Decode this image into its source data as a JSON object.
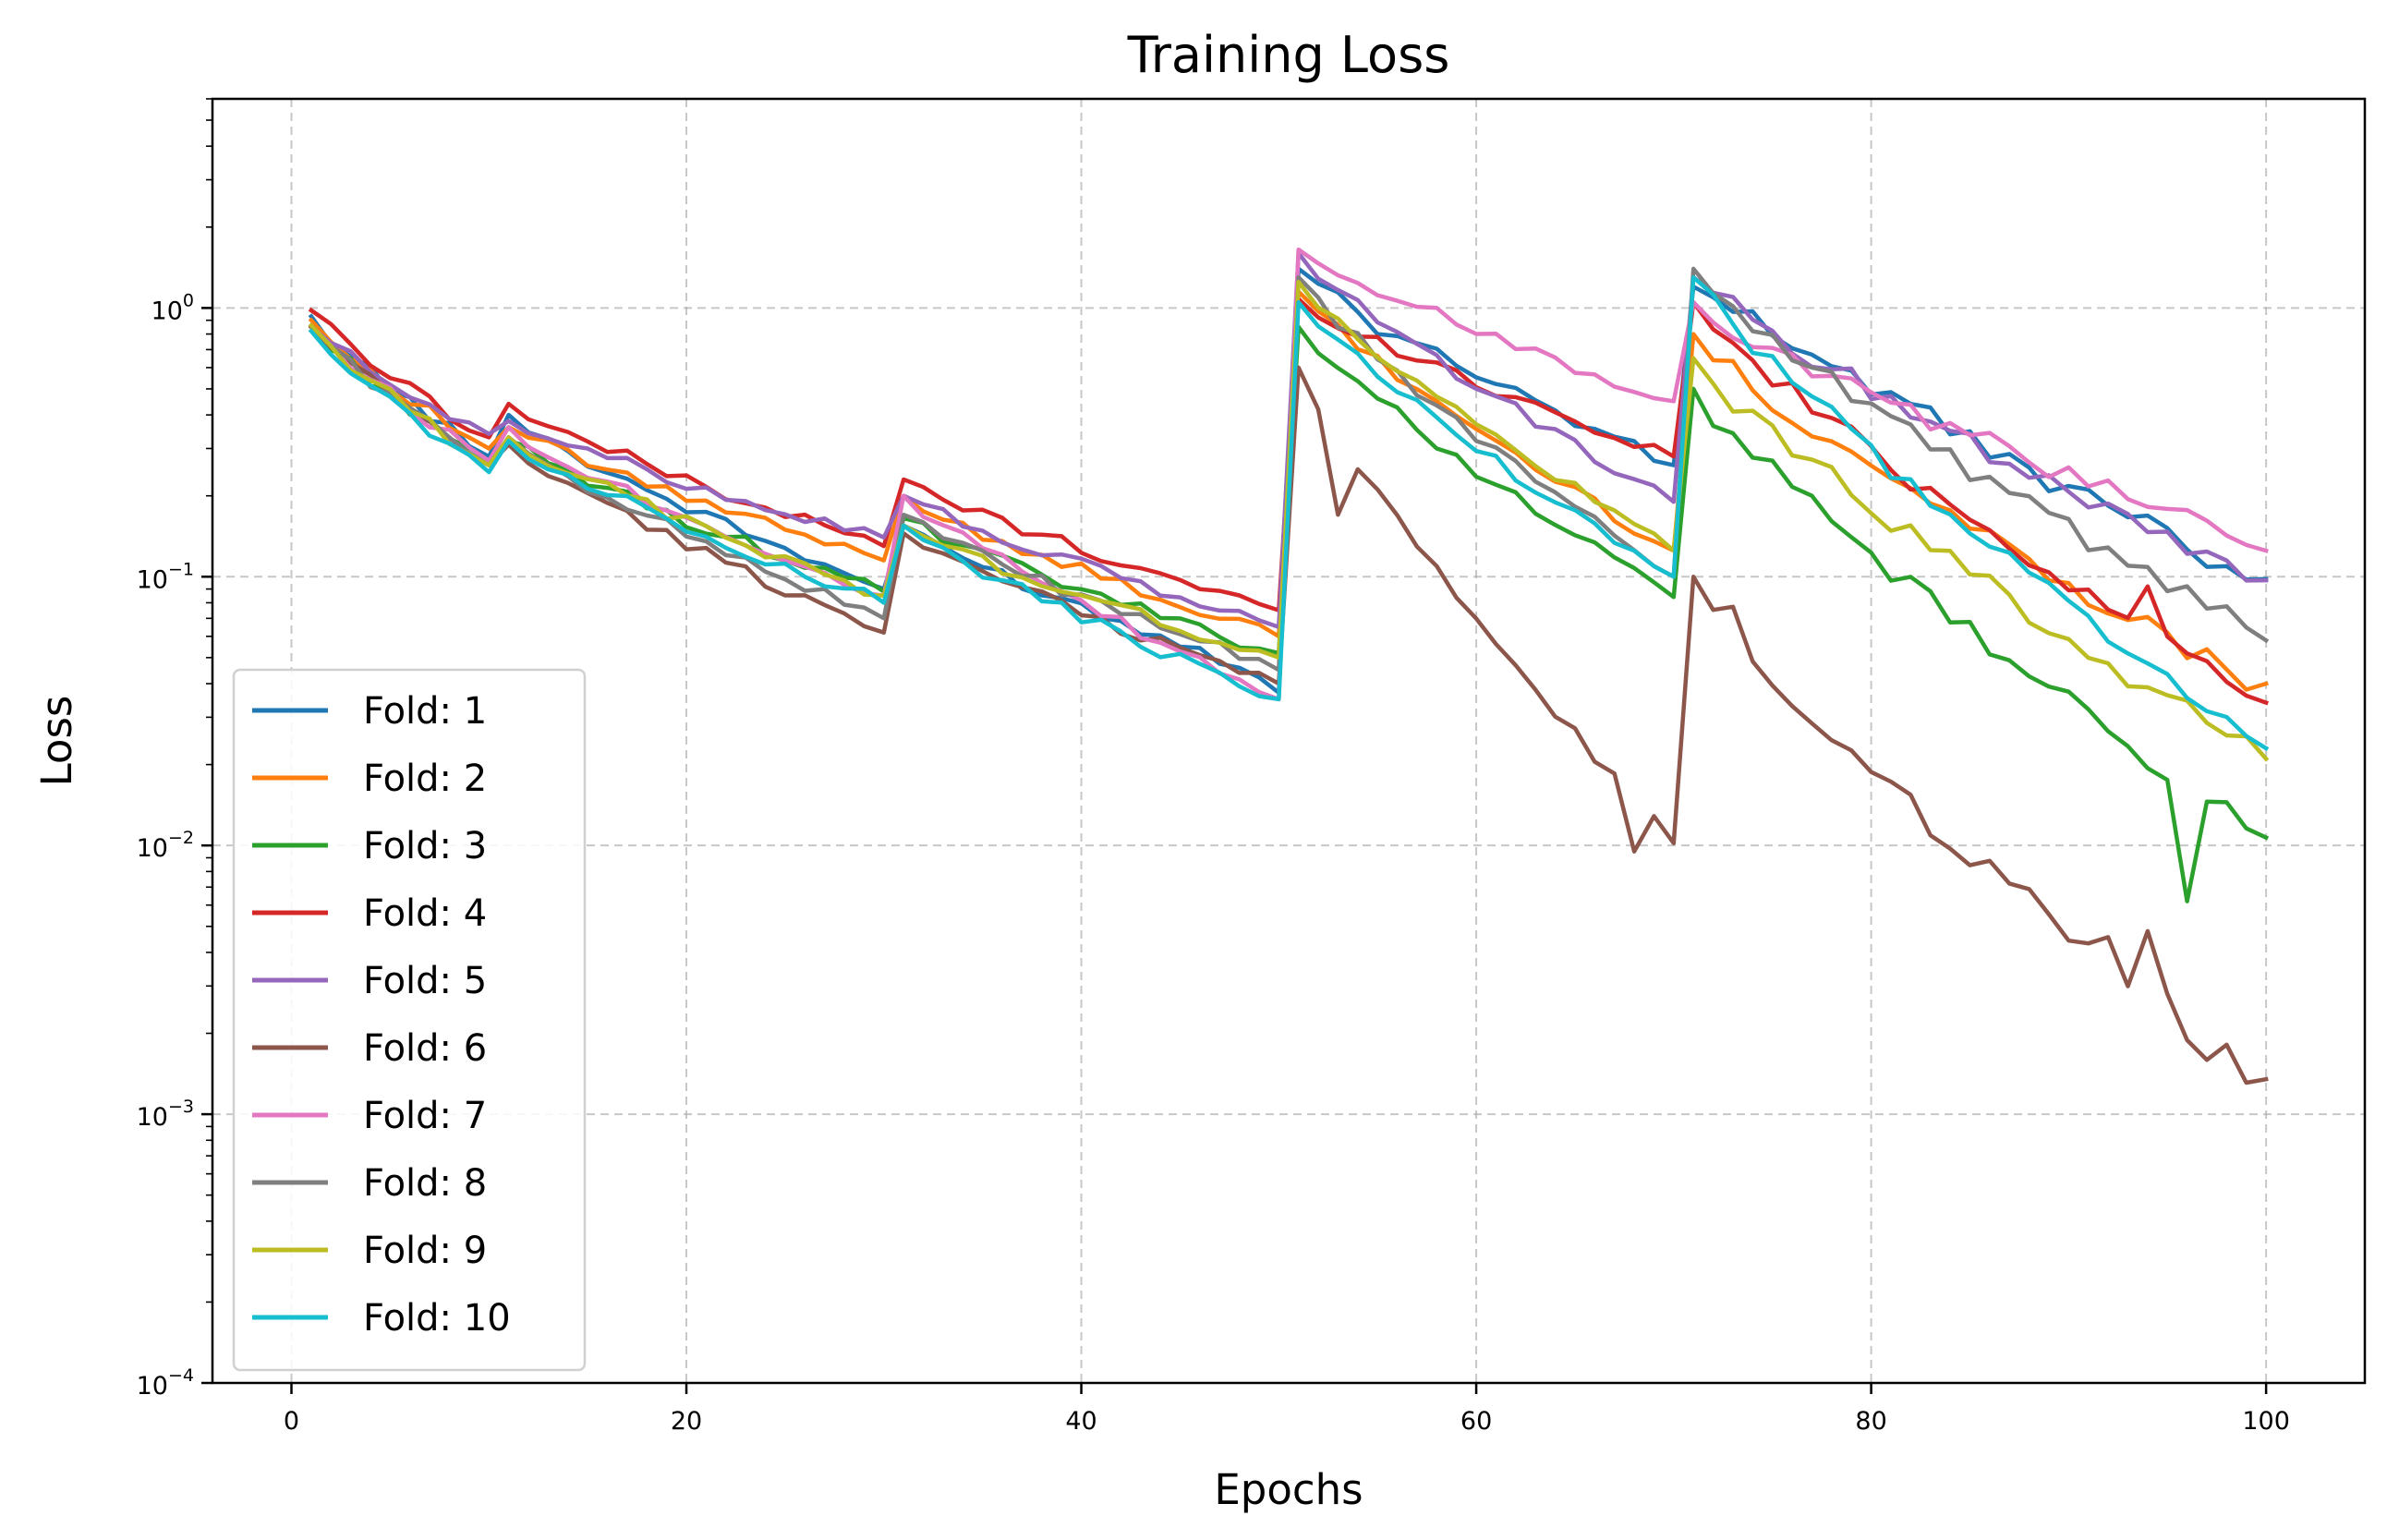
{
  "chart_data": {
    "type": "line",
    "title": "Training Loss",
    "xlabel": "Epochs",
    "ylabel": "Loss",
    "yscale": "log",
    "xlim": [
      -4,
      105
    ],
    "ylim": [
      0.0001,
      6
    ],
    "xticks": [
      0,
      20,
      40,
      60,
      80,
      100
    ],
    "yticks": [
      {
        "value": 0.0001,
        "base": "10",
        "exp": "−4"
      },
      {
        "value": 0.001,
        "base": "10",
        "exp": "−3"
      },
      {
        "value": 0.01,
        "base": "10",
        "exp": "−2"
      },
      {
        "value": 0.1,
        "base": "10",
        "exp": "−1"
      },
      {
        "value": 1,
        "base": "10",
        "exp": "0"
      }
    ],
    "grid": true,
    "legend_position": "lower-left",
    "epochs_range": [
      1,
      100
    ],
    "series": [
      {
        "name": "Fold: 1",
        "color": "#1f77b4",
        "start": 0.93,
        "segments": [
          [
            1,
            10,
            0.93,
            0.28
          ],
          [
            11,
            30,
            0.4,
            0.09
          ],
          [
            31,
            50,
            0.155,
            0.042
          ],
          [
            51,
            70,
            1.4,
            0.26
          ],
          [
            71,
            100,
            1.35,
            0.095
          ]
        ],
        "keypoints": {
          "50": 0.037,
          "55": 0.8,
          "71": 1.2,
          "100": 0.098
        }
      },
      {
        "name": "Fold: 2",
        "color": "#ff7f0e",
        "start": 0.9,
        "segments": [
          [
            1,
            10,
            0.9,
            0.3
          ],
          [
            11,
            30,
            0.36,
            0.115
          ],
          [
            31,
            50,
            0.2,
            0.06
          ],
          [
            51,
            70,
            1.15,
            0.125
          ],
          [
            71,
            100,
            0.8,
            0.038
          ]
        ],
        "keypoints": {
          "100": 0.04
        }
      },
      {
        "name": "Fold: 3",
        "color": "#2ca02c",
        "start": 0.85,
        "segments": [
          [
            1,
            10,
            0.85,
            0.27
          ],
          [
            11,
            30,
            0.32,
            0.088
          ],
          [
            31,
            50,
            0.165,
            0.052
          ],
          [
            51,
            70,
            0.85,
            0.084
          ],
          [
            71,
            100,
            0.5,
            0.0105
          ]
        ],
        "keypoints": {
          "96": 0.0062,
          "100": 0.0107
        }
      },
      {
        "name": "Fold: 4",
        "color": "#d62728",
        "start": 0.98,
        "segments": [
          [
            1,
            10,
            0.98,
            0.33
          ],
          [
            11,
            30,
            0.44,
            0.13
          ],
          [
            31,
            50,
            0.23,
            0.075
          ],
          [
            51,
            70,
            1.08,
            0.28
          ],
          [
            71,
            100,
            1.05,
            0.034
          ]
        ],
        "keypoints": {
          "94": 0.092,
          "100": 0.034
        }
      },
      {
        "name": "Fold: 5",
        "color": "#9467bd",
        "start": 0.85,
        "segments": [
          [
            1,
            10,
            0.85,
            0.34
          ],
          [
            11,
            30,
            0.38,
            0.14
          ],
          [
            31,
            50,
            0.2,
            0.065
          ],
          [
            51,
            70,
            1.6,
            0.19
          ],
          [
            71,
            100,
            1.3,
            0.097
          ]
        ],
        "keypoints": {
          "100": 0.097
        }
      },
      {
        "name": "Fold: 6",
        "color": "#8c564b",
        "start": 0.85,
        "segments": [
          [
            1,
            10,
            0.85,
            0.26
          ],
          [
            11,
            30,
            0.31,
            0.062
          ],
          [
            31,
            50,
            0.145,
            0.04
          ],
          [
            51,
            70,
            0.6,
            0.0102
          ],
          [
            71,
            100,
            0.1,
            0.00135
          ]
        ],
        "keypoints": {
          "53": 0.17,
          "68": 0.0095,
          "94": 0.0048,
          "100": 0.00135
        }
      },
      {
        "name": "Fold: 7",
        "color": "#e377c2",
        "start": 0.86,
        "segments": [
          [
            1,
            10,
            0.86,
            0.27
          ],
          [
            11,
            30,
            0.36,
            0.085
          ],
          [
            31,
            50,
            0.2,
            0.035
          ],
          [
            51,
            70,
            1.65,
            0.45
          ],
          [
            71,
            100,
            1.05,
            0.125
          ]
        ],
        "keypoints": {
          "100": 0.125
        }
      },
      {
        "name": "Fold: 8",
        "color": "#7f7f7f",
        "start": 0.86,
        "segments": [
          [
            1,
            10,
            0.86,
            0.26
          ],
          [
            11,
            30,
            0.33,
            0.07
          ],
          [
            31,
            50,
            0.17,
            0.045
          ],
          [
            51,
            70,
            1.3,
            0.1
          ],
          [
            71,
            100,
            1.4,
            0.058
          ]
        ],
        "keypoints": {
          "100": 0.058
        }
      },
      {
        "name": "Fold: 9",
        "color": "#bcbd22",
        "start": 0.86,
        "segments": [
          [
            1,
            10,
            0.86,
            0.26
          ],
          [
            11,
            30,
            0.33,
            0.085
          ],
          [
            31,
            50,
            0.155,
            0.05
          ],
          [
            51,
            70,
            1.25,
            0.125
          ],
          [
            71,
            100,
            0.65,
            0.021
          ]
        ],
        "keypoints": {
          "100": 0.021
        }
      },
      {
        "name": "Fold: 10",
        "color": "#17becf",
        "start": 0.82,
        "segments": [
          [
            1,
            10,
            0.82,
            0.245
          ],
          [
            11,
            30,
            0.32,
            0.08
          ],
          [
            31,
            50,
            0.155,
            0.035
          ],
          [
            51,
            70,
            1.05,
            0.1
          ],
          [
            71,
            100,
            1.3,
            0.023
          ]
        ],
        "keypoints": {
          "100": 0.023
        }
      }
    ]
  }
}
